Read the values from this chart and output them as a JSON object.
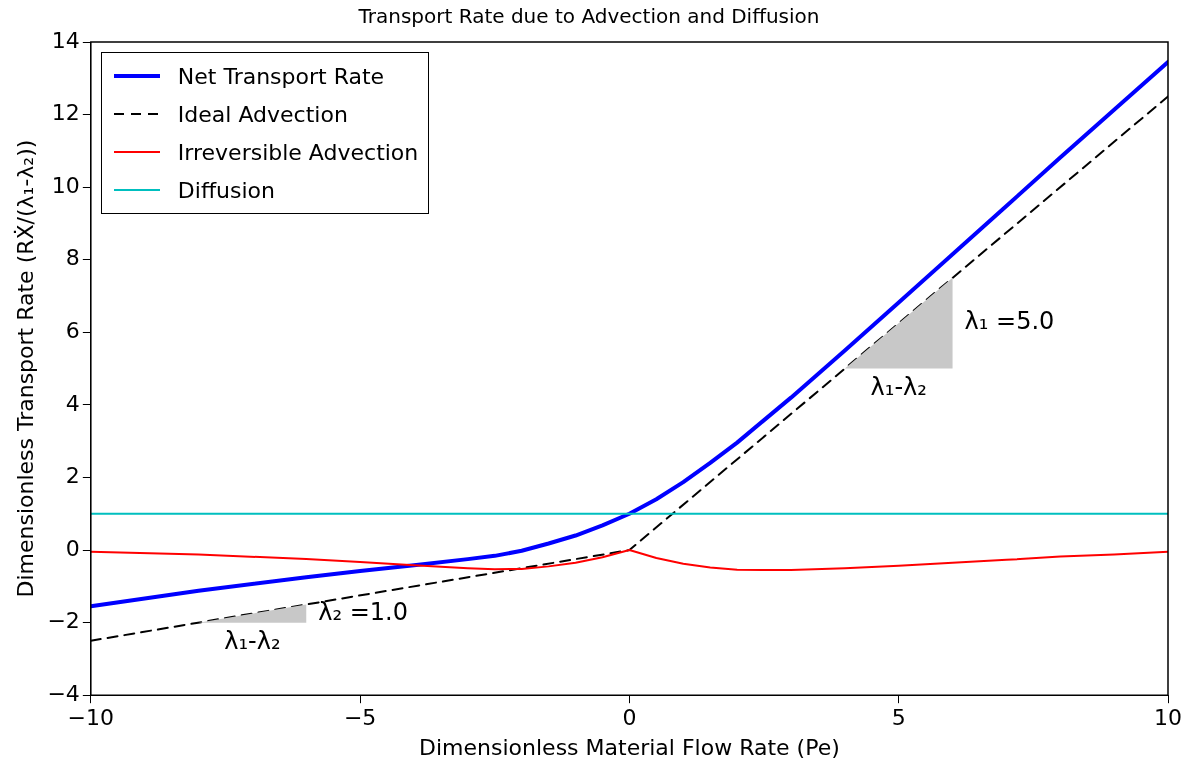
{
  "chart_data": {
    "type": "line",
    "title": "Transport Rate due to Advection and Diffusion",
    "xlabel": "Dimensionless Material Flow Rate (Pe)",
    "ylabel": "Dimensionless Transport Rate (RẊ/(λ₁-λ₂))",
    "xlim": [
      -10,
      10
    ],
    "xticks": [
      {
        "value": -10,
        "label": "−10"
      },
      {
        "value": -5,
        "label": "−5"
      },
      0,
      5,
      10
    ],
    "ylim": [
      -4,
      14
    ],
    "yticks": [
      {
        "value": -4,
        "label": "−4"
      },
      {
        "value": -2,
        "label": "−2"
      },
      0,
      2,
      4,
      6,
      8,
      10,
      12,
      14
    ],
    "grid": false,
    "legend": "top left",
    "marker": "none",
    "series": [
      {
        "name": "Net Transport Rate",
        "color": "#0000ff",
        "x": [
          -10,
          -8,
          -6,
          -5,
          -4,
          -3,
          -2.5,
          -2,
          -1.5,
          -1,
          -0.5,
          0,
          0.5,
          1,
          1.5,
          2,
          2.5,
          3,
          4,
          5,
          6,
          7,
          8,
          9,
          10
        ],
        "values": [
          -1.55,
          -1.12,
          -0.75,
          -0.58,
          -0.42,
          -0.25,
          -0.16,
          -0.02,
          0.18,
          0.4,
          0.68,
          1,
          1.4,
          1.87,
          2.4,
          2.96,
          3.58,
          4.2,
          5.5,
          6.82,
          8.15,
          9.48,
          10.82,
          12.13,
          13.45
        ]
      },
      {
        "name": "Ideal Advection",
        "color": "#000000",
        "line_style": "dashed",
        "x": [
          -10,
          0,
          10
        ],
        "values": [
          -2.5,
          0,
          12.5
        ]
      },
      {
        "name": "Irreversible Advection",
        "color": "#ff0000",
        "x": [
          -10,
          -8,
          -6,
          -5,
          -4,
          -3,
          -2.5,
          -2,
          -1.5,
          -1,
          -0.5,
          0,
          0.5,
          1,
          1.5,
          2,
          2.5,
          3,
          4,
          5,
          6,
          7,
          8,
          9,
          10
        ],
        "values": [
          -0.05,
          -0.12,
          -0.25,
          -0.33,
          -0.42,
          -0.5,
          -0.53,
          -0.52,
          -0.45,
          -0.35,
          -0.2,
          0,
          -0.22,
          -0.38,
          -0.48,
          -0.54,
          -0.55,
          -0.55,
          -0.5,
          -0.43,
          -0.35,
          -0.27,
          -0.18,
          -0.12,
          -0.05
        ]
      },
      {
        "name": "Diffusion",
        "color": "#00bfbf",
        "x": [
          -10,
          10
        ],
        "values": [
          1,
          1
        ]
      }
    ],
    "annotations": [
      "λ₁-λ₂",
      "λ₁ =5.0",
      "λ₁-λ₂",
      "λ₂ =1.0"
    ]
  }
}
